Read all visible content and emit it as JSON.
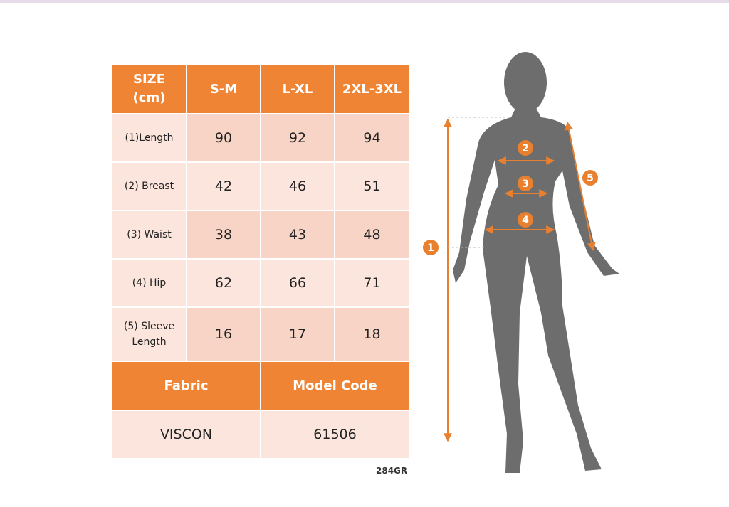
{
  "table": {
    "header": [
      "SIZE (cm)",
      "S-M",
      "L-XL",
      "2XL-3XL"
    ],
    "rows": [
      [
        "(1)Length",
        "90",
        "92",
        "94"
      ],
      [
        "(2) Breast",
        "42",
        "46",
        "51"
      ],
      [
        "(3) Waist",
        "38",
        "43",
        "48"
      ],
      [
        "(4) Hip",
        "62",
        "66",
        "71"
      ],
      [
        "(5) Sleeve Length",
        "16",
        "17",
        "18"
      ]
    ]
  },
  "info": {
    "header": [
      "Fabric",
      "Model Code"
    ],
    "values": [
      "VISCON",
      "61506"
    ]
  },
  "code": "284GR",
  "figure": {
    "labels": [
      "1",
      "2",
      "3",
      "4",
      "5"
    ]
  }
}
